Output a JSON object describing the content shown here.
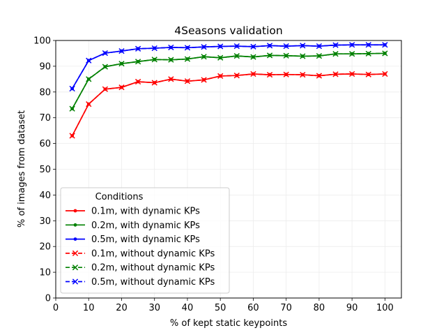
{
  "chart_data": {
    "type": "line",
    "title": "4Seasons validation",
    "xlabel": "% of kept static keypoints",
    "ylabel": "% of images from dataset",
    "xlim": [
      0,
      105
    ],
    "ylim": [
      0,
      100
    ],
    "xticks": [
      0,
      10,
      20,
      30,
      40,
      50,
      60,
      70,
      80,
      90,
      100
    ],
    "yticks": [
      0,
      10,
      20,
      30,
      40,
      50,
      60,
      70,
      80,
      90,
      100
    ],
    "grid": true,
    "legend_title": "Conditions",
    "legend_position": "lower-left",
    "x": [
      5,
      10,
      15,
      20,
      25,
      30,
      35,
      40,
      45,
      50,
      55,
      60,
      65,
      70,
      75,
      80,
      85,
      90,
      95,
      100
    ],
    "series": [
      {
        "name": "0.1m, with dynamic KPs",
        "color": "#ff0000",
        "linestyle": "solid",
        "marker": "dot",
        "values": [
          63.0,
          75.3,
          81.1,
          81.8,
          84.0,
          83.6,
          85.0,
          84.2,
          84.7,
          86.2,
          86.4,
          87.0,
          86.7,
          86.8,
          86.7,
          86.3,
          86.9,
          87.0,
          86.8,
          87.0
        ]
      },
      {
        "name": "0.2m, with dynamic KPs",
        "color": "#008000",
        "linestyle": "solid",
        "marker": "dot",
        "values": [
          73.5,
          85.0,
          89.8,
          91.0,
          91.8,
          92.6,
          92.5,
          92.8,
          93.7,
          93.3,
          94.0,
          93.6,
          94.2,
          94.1,
          93.9,
          94.0,
          94.8,
          94.8,
          94.9,
          95.0
        ]
      },
      {
        "name": "0.5m, with dynamic KPs",
        "color": "#0000ff",
        "linestyle": "solid",
        "marker": "dot",
        "values": [
          81.3,
          92.2,
          95.1,
          95.9,
          96.8,
          97.0,
          97.3,
          97.2,
          97.5,
          97.7,
          97.8,
          97.6,
          98.0,
          97.8,
          98.0,
          97.8,
          98.2,
          98.3,
          98.3,
          98.3
        ]
      },
      {
        "name": "0.1m, without dynamic KPs",
        "color": "#ff0000",
        "linestyle": "dashed",
        "marker": "x",
        "values": [
          63.0,
          75.3,
          81.1,
          81.8,
          84.0,
          83.6,
          85.0,
          84.2,
          84.7,
          86.2,
          86.4,
          87.0,
          86.7,
          86.8,
          86.7,
          86.3,
          86.9,
          87.0,
          86.8,
          87.0
        ]
      },
      {
        "name": "0.2m, without dynamic KPs",
        "color": "#008000",
        "linestyle": "dashed",
        "marker": "x",
        "values": [
          73.5,
          85.0,
          89.8,
          91.0,
          91.8,
          92.6,
          92.5,
          92.8,
          93.7,
          93.3,
          94.0,
          93.6,
          94.2,
          94.1,
          93.9,
          94.0,
          94.8,
          94.8,
          94.9,
          95.0
        ]
      },
      {
        "name": "0.5m, without dynamic KPs",
        "color": "#0000ff",
        "linestyle": "dashed",
        "marker": "x",
        "values": [
          81.3,
          92.2,
          95.1,
          95.9,
          96.8,
          97.0,
          97.3,
          97.2,
          97.5,
          97.7,
          97.8,
          97.6,
          98.0,
          97.8,
          98.0,
          97.8,
          98.2,
          98.3,
          98.3,
          98.3
        ]
      }
    ]
  }
}
